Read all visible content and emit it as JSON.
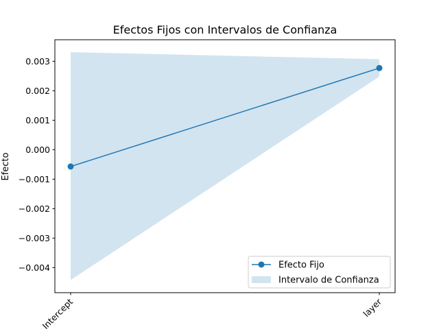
{
  "chart_data": {
    "type": "line",
    "title": "Efectos Fijos con Intervalos de Confianza",
    "xlabel": "",
    "ylabel": "Efecto",
    "categories": [
      "Intercept",
      "layer"
    ],
    "series": [
      {
        "name": "Efecto Fijo",
        "values": [
          -0.00057,
          0.00277
        ],
        "color": "#1f77b4"
      }
    ],
    "confidence_band": {
      "name": "Intervalo de Confianza",
      "lower": [
        -0.00442,
        0.00248
      ],
      "upper": [
        0.00331,
        0.00307
      ],
      "color": "#1f77b4",
      "opacity": 0.2
    },
    "yticks": [
      -0.004,
      -0.003,
      -0.002,
      -0.001,
      0.0,
      0.001,
      0.002,
      0.003
    ],
    "ytick_labels": [
      "−0.004",
      "−0.003",
      "−0.002",
      "−0.001",
      "0.000",
      "0.001",
      "0.002",
      "0.003"
    ],
    "ylim": [
      -0.00485,
      0.00373
    ],
    "grid": false,
    "legend_position": "lower-right"
  }
}
